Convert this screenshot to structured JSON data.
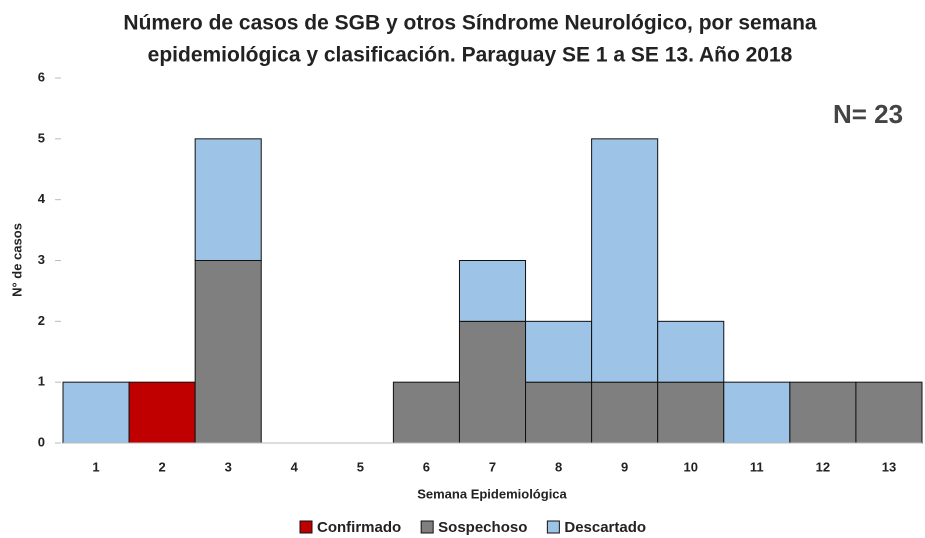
{
  "chart_data": {
    "type": "stacked_bar",
    "title": [
      "Número de casos de SGB y otros Síndrome Neurológico, por  semana",
      "epidemiológica  y clasificación. Paraguay SE 1 a SE 13. Año 2018"
    ],
    "annotation": "N= 23",
    "x_label": "Semana Epidemiológica",
    "y_label": "N° de casos",
    "categories": [
      "1",
      "2",
      "3",
      "4",
      "5",
      "6",
      "7",
      "8",
      "9",
      "10",
      "11",
      "12",
      "13"
    ],
    "series": [
      {
        "name": "Confirmado",
        "color": "#c00000",
        "values": [
          0,
          1,
          0,
          0,
          0,
          0,
          0,
          0,
          0,
          0,
          0,
          0,
          0
        ]
      },
      {
        "name": "Sospechoso",
        "color": "#7f7f7f",
        "values": [
          0,
          0,
          3,
          0,
          0,
          1,
          2,
          1,
          1,
          1,
          0,
          1,
          1
        ]
      },
      {
        "name": "Descartado",
        "color": "#9dc3e6",
        "values": [
          1,
          0,
          2,
          0,
          0,
          0,
          1,
          1,
          4,
          1,
          1,
          0,
          0
        ]
      }
    ],
    "ylim": [
      0,
      6
    ],
    "yticks": [
      0,
      1,
      2,
      3,
      4,
      5,
      6
    ],
    "grid": false
  }
}
